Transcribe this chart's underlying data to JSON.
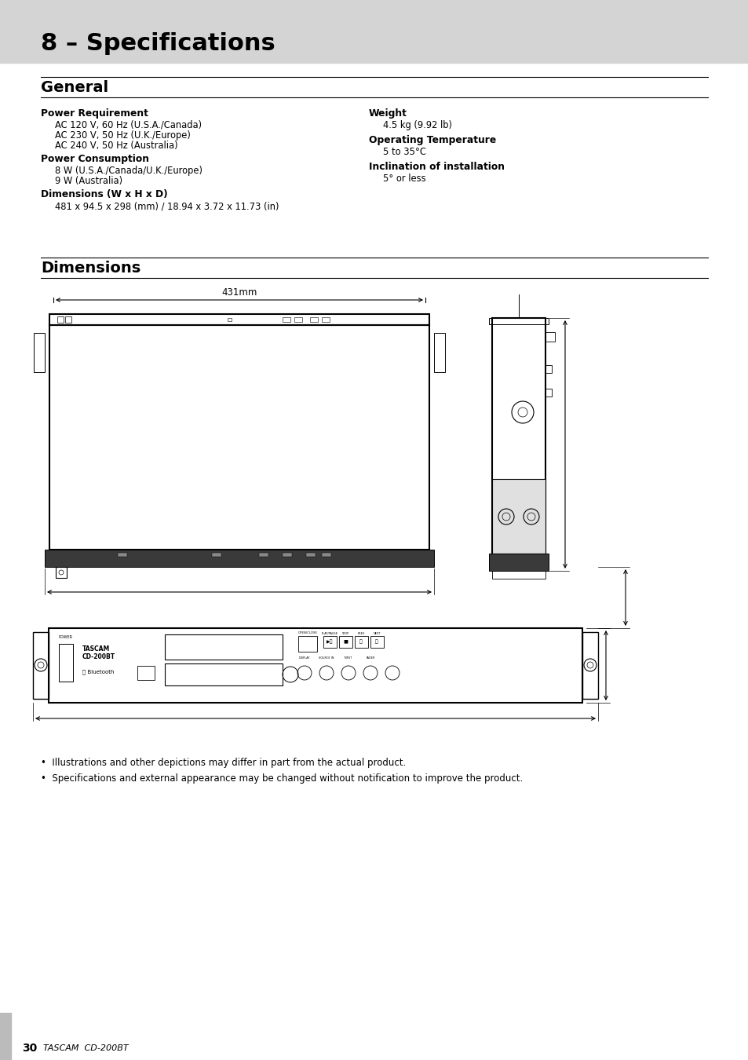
{
  "page_bg": "#ffffff",
  "header_bg": "#d4d4d4",
  "header_text": "8 – Specifications",
  "header_text_color": "#000000",
  "section1_title": "General",
  "section2_title": "Dimensions",
  "left_col": [
    {
      "bold": true,
      "text": "Power Requirement"
    },
    {
      "bold": false,
      "text": "AC 120 V, 60 Hz (U.S.A./Canada)"
    },
    {
      "bold": false,
      "text": "AC 230 V, 50 Hz (U.K./Europe)"
    },
    {
      "bold": false,
      "text": "AC 240 V, 50 Hz (Australia)"
    },
    {
      "bold": true,
      "text": "Power Consumption"
    },
    {
      "bold": false,
      "text": "8 W (U.S.A./Canada/U.K./Europe)"
    },
    {
      "bold": false,
      "text": "9 W (Australia)"
    },
    {
      "bold": true,
      "text": "Dimensions (W x H x D)"
    },
    {
      "bold": false,
      "text": "481 x 94.5 x 298 (mm) / 18.94 x 3.72 x 11.73 (in)"
    }
  ],
  "right_col": [
    {
      "bold": true,
      "text": "Weight"
    },
    {
      "bold": false,
      "text": "4.5 kg (9.92 lb)"
    },
    {
      "bold": true,
      "text": "Operating Temperature"
    },
    {
      "bold": false,
      "text": "5 to 35°C"
    },
    {
      "bold": true,
      "text": "Inclination of installation"
    },
    {
      "bold": false,
      "text": "5° or less"
    }
  ],
  "dim_label": "431mm",
  "footnotes": [
    "•  Illustrations and other depictions may differ in part from the actual product.",
    "•  Specifications and external appearance may be changed without notification to improve the product."
  ],
  "footer_page": "30",
  "footer_brand": "TASCAM",
  "footer_model": "CD-200BT",
  "footer_bar_color": "#bbbbbb"
}
